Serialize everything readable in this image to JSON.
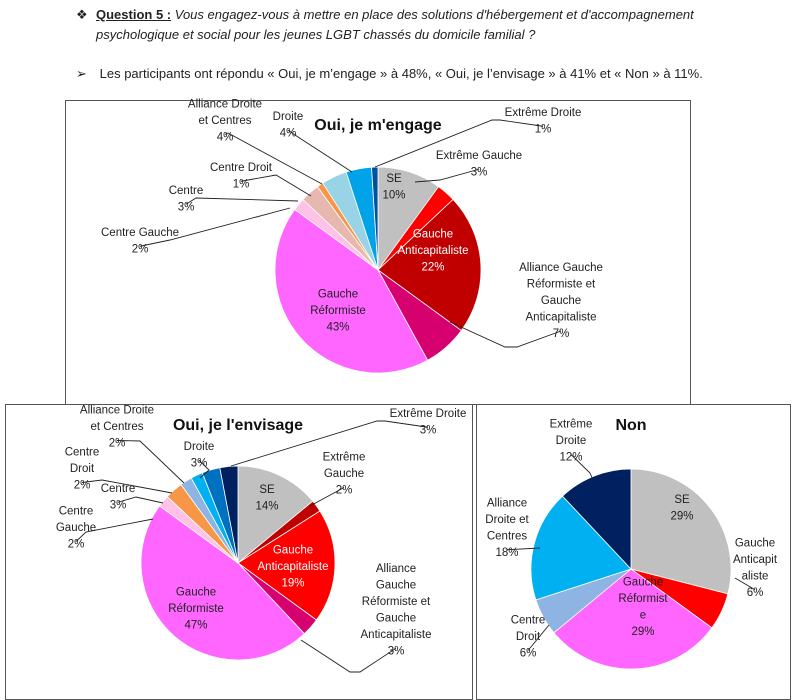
{
  "question": {
    "bullet": "❖",
    "label": "Question 5 :",
    "text": "Vous engagez-vous à mettre en place des solutions d'hébergement et d'accompagnement psychologique et social pour les jeunes LGBT chassés du domicile familial ?"
  },
  "answer": {
    "bullet": "➢",
    "text": "Les participants ont répondu « Oui, je m’engage » à 48%, « Oui, je l’envisage » à 41% et « Non » à 11%."
  },
  "chart_data": [
    {
      "type": "pie",
      "title": "Oui, je m'engage",
      "slices": [
        {
          "lines": [
            "SE",
            "10%"
          ],
          "value": 10,
          "color": "#c0c0c0"
        },
        {
          "lines": [
            "Extrême Gauche",
            "3%"
          ],
          "value": 3,
          "color": "#ff0000"
        },
        {
          "lines": [
            "Gauche",
            "Anticapitaliste",
            "22%"
          ],
          "value": 22,
          "color": "#c00000"
        },
        {
          "lines": [
            "Alliance Gauche",
            "Réformiste et",
            "Gauche",
            "Anticapitaliste",
            "7%"
          ],
          "value": 7,
          "color": "#d6006e"
        },
        {
          "lines": [
            "Gauche",
            "Réformiste",
            "43%"
          ],
          "value": 43,
          "color": "#ff66ff"
        },
        {
          "lines": [
            "Centre Gauche",
            "2%"
          ],
          "value": 2,
          "color": "#ffc2e6"
        },
        {
          "lines": [
            "Centre",
            "3%"
          ],
          "value": 3,
          "color": "#e6b8af"
        },
        {
          "lines": [
            "Centre Droit",
            "1%"
          ],
          "value": 1,
          "color": "#f79646"
        },
        {
          "lines": [
            "Alliance Droite",
            "et Centres",
            "4%"
          ],
          "value": 4,
          "color": "#99d3e6"
        },
        {
          "lines": [
            "Droite",
            "4%"
          ],
          "value": 4,
          "color": "#00a2e8"
        },
        {
          "lines": [
            "Extrême Droite",
            "1%"
          ],
          "value": 1,
          "color": "#0050a0"
        }
      ]
    },
    {
      "type": "pie",
      "title": "Oui, je l'envisage",
      "slices": [
        {
          "lines": [
            "SE",
            "14%"
          ],
          "value": 14,
          "color": "#c0c0c0"
        },
        {
          "lines": [
            "Extrême",
            "Gauche",
            "2%"
          ],
          "value": 2,
          "color": "#c00000"
        },
        {
          "lines": [
            "Gauche",
            "Anticapitaliste",
            "19%"
          ],
          "value": 19,
          "color": "#ff0000"
        },
        {
          "lines": [
            "Alliance",
            "Gauche",
            "Réformiste et",
            "Gauche",
            "Anticapitaliste",
            "3%"
          ],
          "value": 3,
          "color": "#d6006e"
        },
        {
          "lines": [
            "Gauche",
            "Réformiste",
            "47%"
          ],
          "value": 47,
          "color": "#ff66ff"
        },
        {
          "lines": [
            "Centre",
            "Gauche",
            "2%"
          ],
          "value": 2,
          "color": "#ffc2e6"
        },
        {
          "lines": [
            "Centre",
            "3%"
          ],
          "value": 3,
          "color": "#f79646"
        },
        {
          "lines": [
            "Centre",
            "Droit",
            "2%"
          ],
          "value": 2,
          "color": "#8db4e2"
        },
        {
          "lines": [
            "Alliance Droite",
            "et Centres",
            "2%"
          ],
          "value": 2,
          "color": "#00b0f0"
        },
        {
          "lines": [
            "Droite",
            "3%"
          ],
          "value": 3,
          "color": "#0070c0"
        },
        {
          "lines": [
            "Extrême Droite",
            "3%"
          ],
          "value": 3,
          "color": "#002060"
        }
      ]
    },
    {
      "type": "pie",
      "title": "Non",
      "slices": [
        {
          "lines": [
            "SE",
            "29%"
          ],
          "value": 29,
          "color": "#c0c0c0"
        },
        {
          "lines": [
            "Gauche",
            "Anticapit",
            "aliste",
            "6%"
          ],
          "value": 6,
          "color": "#ff0000"
        },
        {
          "lines": [
            "Gauche",
            "Réformist",
            "e",
            "29%"
          ],
          "value": 29,
          "color": "#ff66ff"
        },
        {
          "lines": [
            "Centre",
            "Droit",
            "6%"
          ],
          "value": 6,
          "color": "#8db4e2"
        },
        {
          "lines": [
            "Alliance",
            "Droite et",
            "Centres",
            "18%"
          ],
          "value": 18,
          "color": "#00b0f0"
        },
        {
          "lines": [
            "Extrême",
            "Droite",
            "12%"
          ],
          "value": 12,
          "color": "#002060"
        }
      ]
    }
  ]
}
